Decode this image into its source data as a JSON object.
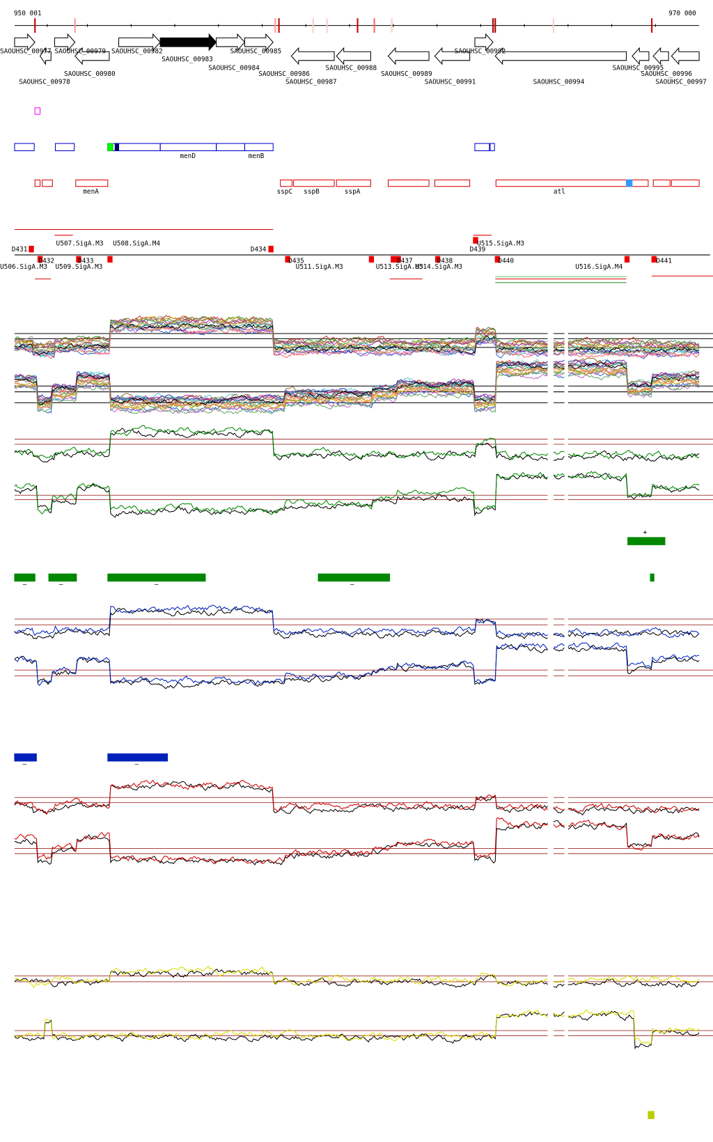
{
  "ruler": {
    "start": "950 001",
    "end": "970 000"
  },
  "genes": [
    "SAOUHSC_00977",
    "SAOUHSC_00978",
    "SAOUHSC_00979",
    "SAOUHSC_00980",
    "SAOUHSC_00982",
    "SAOUHSC_00983",
    "SAOUHSC_00984",
    "SAOUHSC_00985",
    "SAOUHSC_00986",
    "SAOUHSC_00987",
    "SAOUHSC_00988",
    "SAOUHSC_00989",
    "SAOUHSC_00991",
    "SAOUHSC_00992",
    "SAOUHSC_00994",
    "SAOUHSC_00995",
    "SAOUHSC_00996",
    "SAOUHSC_00997"
  ],
  "blue_features": [
    "menD",
    "menB"
  ],
  "red_features": [
    "menA",
    "sspC",
    "sspB",
    "sspA",
    "atl"
  ],
  "sites": [
    "D431",
    "U507.SigA.M3",
    "U508.SigA.M4",
    "D434",
    "U515.SigA.M3",
    "D439",
    "U506.SigA.M3",
    "D432",
    "D433",
    "U509.SigA.M3",
    "D435",
    "U511.SigA.M3",
    "U513.SigA.M3",
    "D437",
    "U514.SigA.M3",
    "D438",
    "D440",
    "U516.SigA.M4",
    "D441"
  ],
  "green_upper_signs": [
    "+"
  ],
  "green_lower_signs": [
    "–",
    "–",
    "–",
    "–"
  ],
  "blue_signs": [
    "–",
    "–"
  ]
}
